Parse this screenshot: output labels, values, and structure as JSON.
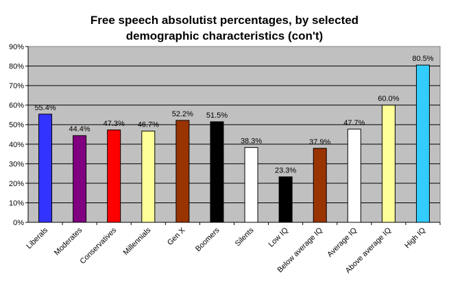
{
  "chart_data": {
    "type": "bar",
    "title_line1": "Free speech absolutist percentages, by selected",
    "title_line2": "demographic characteristics (con't)",
    "xlabel": "",
    "ylabel": "",
    "ylim": [
      0,
      90
    ],
    "yticks": [
      "0%",
      "10%",
      "20%",
      "30%",
      "40%",
      "50%",
      "60%",
      "70%",
      "80%",
      "90%"
    ],
    "grid": true,
    "categories": [
      "Liberals",
      "Moderates",
      "Conservatives",
      "Millennials",
      "Gen X",
      "Boomers",
      "Silents",
      "Low IQ",
      "Below average IQ",
      "Average IQ",
      "Above average IQ",
      "High IQ"
    ],
    "values": [
      55.4,
      44.4,
      47.3,
      46.7,
      52.2,
      51.5,
      38.3,
      23.3,
      37.9,
      47.7,
      60.0,
      80.5
    ],
    "value_labels": [
      "55.4%",
      "44.4%",
      "47.3%",
      "46.7%",
      "52.2%",
      "51.5%",
      "38.3%",
      "23.3%",
      "37.9%",
      "47.7%",
      "60.0%",
      "80.5%"
    ],
    "bar_colors": [
      "#3333FF",
      "#800080",
      "#FF0000",
      "#FFFF99",
      "#993300",
      "#000000",
      "#FFFFFF",
      "#000000",
      "#993300",
      "#FFFFFF",
      "#FFFF99",
      "#33CCFF"
    ],
    "plot_background": "#C0C0C0"
  }
}
